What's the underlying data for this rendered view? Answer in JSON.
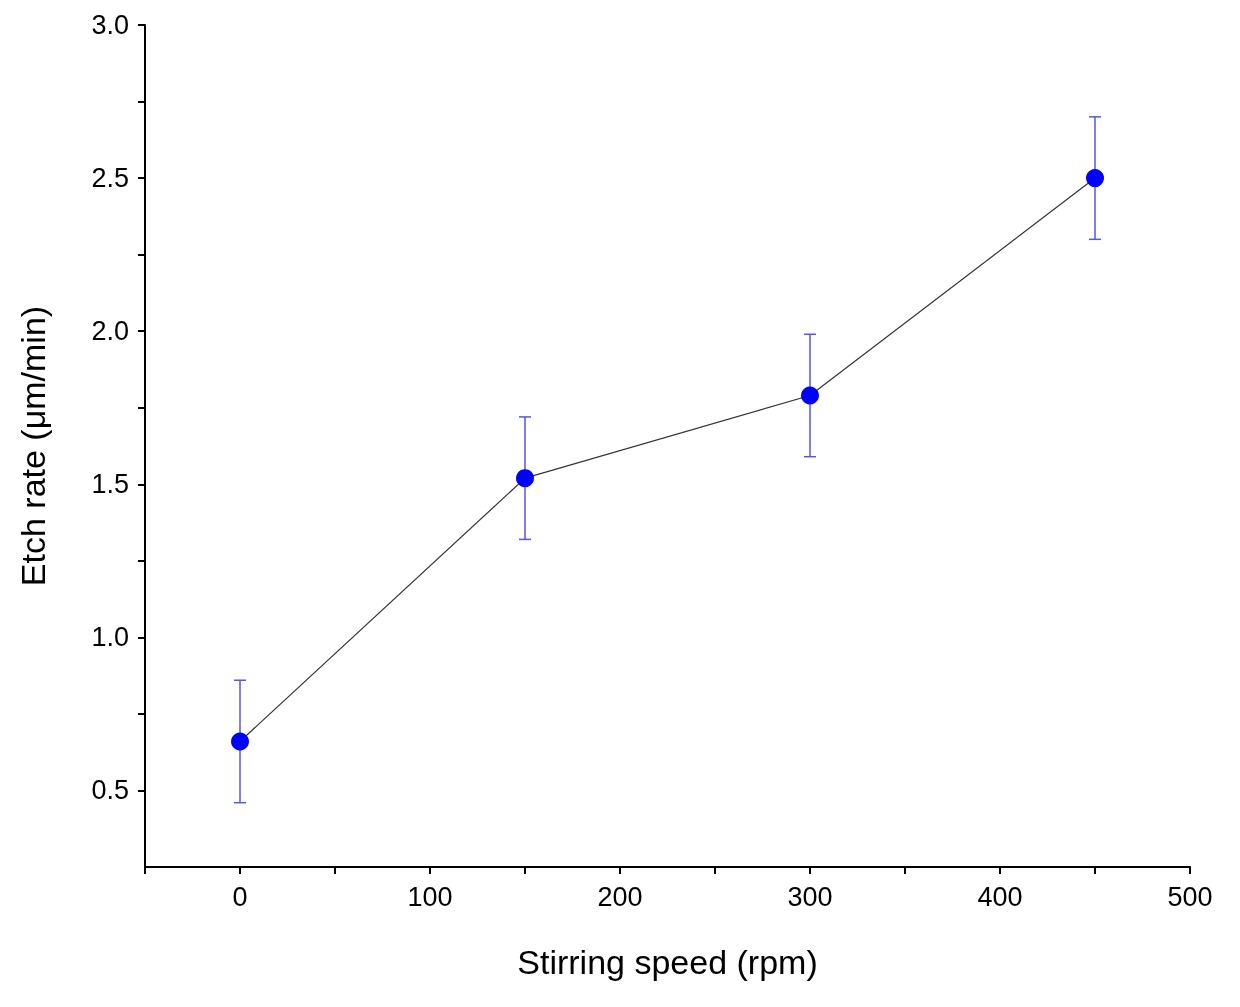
{
  "chart_data": {
    "type": "line",
    "xlabel": "Stirring speed (rpm)",
    "ylabel": "Etch rate (μm/min)",
    "x": [
      0,
      150,
      300,
      450
    ],
    "series": [
      {
        "color": "#0000ff",
        "values": [
          0.66,
          1.52,
          1.79,
          2.5
        ],
        "errors": [
          0.2,
          0.2,
          0.2,
          0.2
        ]
      }
    ],
    "xlim": [
      -50,
      500
    ],
    "xticks": [
      {
        "value": -50,
        "label": null
      },
      0,
      {
        "value": 50,
        "label": null
      },
      100,
      {
        "value": 150,
        "label": null
      },
      200,
      {
        "value": 250,
        "label": null
      },
      300,
      {
        "value": 350,
        "label": null
      },
      400,
      {
        "value": 450,
        "label": null
      },
      500
    ],
    "ylim": [
      0.25,
      3.0
    ],
    "yticks": [
      {
        "value": 0.5,
        "label": "0.5"
      },
      {
        "value": 0.75,
        "label": null
      },
      {
        "value": 1.0,
        "label": "1.0"
      },
      {
        "value": 1.25,
        "label": null
      },
      {
        "value": 1.5,
        "label": "1.5"
      },
      {
        "value": 1.75,
        "label": null
      },
      {
        "value": 2.0,
        "label": "2.0"
      },
      {
        "value": 2.25,
        "label": null
      },
      {
        "value": 2.5,
        "label": "2.5"
      },
      {
        "value": 2.75,
        "label": null
      },
      {
        "value": 3.0,
        "label": "3.0"
      }
    ],
    "marker": "circle",
    "line_style": "solid"
  }
}
